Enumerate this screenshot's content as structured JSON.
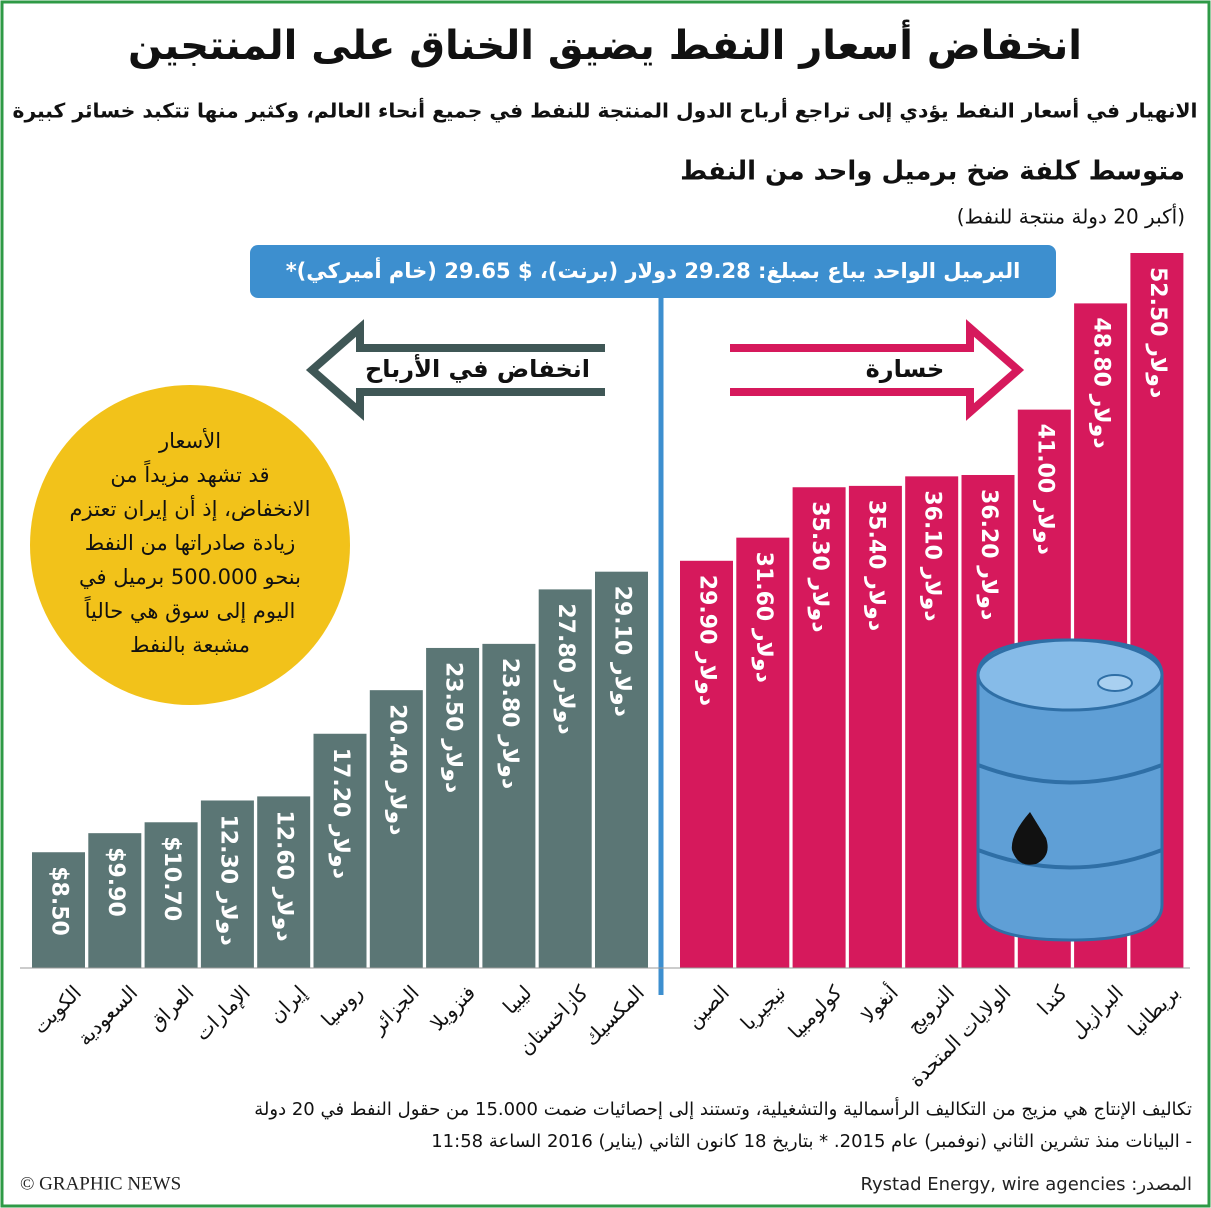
{
  "chart_data": {
    "type": "bar",
    "title": "انخفاض أسعار النفط يضيق الخناق على المنتجين",
    "subtitle": "الانهيار في أسعار النفط يؤدي إلى تراجع أرباح الدول المنتجة للنفط في جميع أنحاء العالم، وكثير منها تتكبد خسائر كبيرة",
    "chart_title": "متوسط كلفة ضخ برميل واحد من النفط",
    "chart_subtitle": "(أكبر 20 دولة منتجة للنفط)",
    "price_note": "البرميل الواحد يباع بمبلغ: 29.28 دولار (برنت)، $ 29.65 (خام أميركي)*",
    "series": [
      {
        "name": "انخفاض في الأرباح",
        "color": "#5b7675",
        "categories": [
          "الكويت",
          "السعودية",
          "العراق",
          "الإمارات",
          "إيران",
          "روسيا",
          "الجزائر",
          "فنزويلا",
          "ليبيا",
          "كازاخستان",
          "المكسيك"
        ],
        "values": [
          8.5,
          9.9,
          10.7,
          12.3,
          12.6,
          17.2,
          20.4,
          23.5,
          23.8,
          27.8,
          29.1
        ],
        "value_labels": [
          "$8.50",
          "$9.90",
          "$10.70",
          "12.30 دولار",
          "12.60 دولار",
          "17.20 دولار",
          "20.40 دولار",
          "23.50 دولار",
          "23.80 دولار",
          "27.80 دولار",
          "29.10 دولار"
        ]
      },
      {
        "name": "خسارة",
        "color": "#d6195c",
        "categories": [
          "الصين",
          "نيجيريا",
          "كولومبيا",
          "أنغولا",
          "النرويج",
          "الولايات المتحدة",
          "كندا",
          "البرازيل",
          "بريطانيا"
        ],
        "values": [
          29.9,
          31.6,
          35.3,
          35.4,
          36.1,
          36.2,
          41.0,
          48.8,
          52.5
        ],
        "value_labels": [
          "29.90 دولار",
          "31.60 دولار",
          "35.30 دولار",
          "35.40 دولار",
          "36.10 دولار",
          "36.20 دولار",
          "41.00 دولار",
          "48.80 دولار",
          "52.50 دولار"
        ]
      }
    ],
    "callout": [
      "الأسعار",
      "قد تشهد مزيداً من",
      "الانخفاض، إذ أن إيران تعتزم",
      "زيادة صادراتها من النفط",
      "بنحو 500.000 برميل في",
      "اليوم إلى سوق هي حالياً",
      "مشبعة بالنفط"
    ],
    "footnote": [
      "تكاليف الإنتاج هي مزيج من التكاليف الرأسمالية والتشغيلية، وتستند إلى إحصائيات ضمت 15.000 من حقول النفط في 20 دولة",
      "- البيانات منذ تشرين الثاني (نوفمبر) عام 2015. * بتاريخ 18 كانون الثاني (يناير) 2016 الساعة 11:58"
    ],
    "credit": "© GRAPHIC NEWS",
    "source": "المصدر: Rystad Energy, wire agencies"
  }
}
